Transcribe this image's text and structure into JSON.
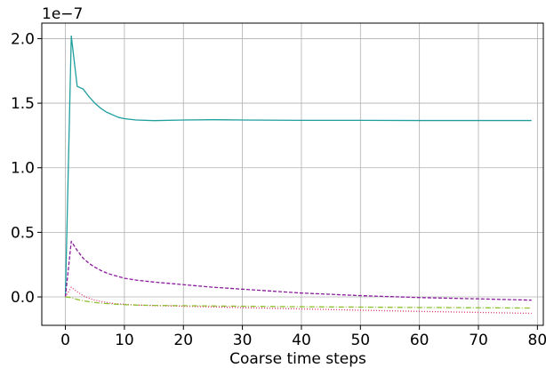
{
  "chart_data": {
    "type": "line",
    "title": "",
    "xlabel": "Coarse time steps",
    "ylabel": "",
    "y_offset_label": "1e−7",
    "xlim": [
      -4,
      81
    ],
    "ylim": [
      -0.22,
      2.12
    ],
    "x_ticks": [
      0,
      10,
      20,
      30,
      40,
      50,
      60,
      70,
      80
    ],
    "y_ticks": [
      0.0,
      0.5,
      1.0,
      1.5,
      2.0
    ],
    "y_tick_labels": [
      "0.0",
      "0.5",
      "1.0",
      "1.5",
      "2.0"
    ],
    "grid": true,
    "legend": "none",
    "series": [
      {
        "color": "#1f9e9e",
        "style": "solid",
        "x": [
          0,
          1,
          2,
          3,
          4,
          5,
          6,
          7,
          8,
          9,
          10,
          12,
          15,
          20,
          25,
          30,
          40,
          50,
          60,
          70,
          79
        ],
        "y": [
          0.0,
          2.02,
          1.63,
          1.61,
          1.55,
          1.5,
          1.46,
          1.43,
          1.41,
          1.39,
          1.38,
          1.37,
          1.365,
          1.37,
          1.372,
          1.37,
          1.367,
          1.367,
          1.366,
          1.366,
          1.366
        ]
      },
      {
        "color": "#8b1a9e",
        "style": "dashed",
        "x": [
          0,
          1,
          2,
          3,
          4,
          5,
          6,
          7,
          8,
          10,
          12,
          15,
          20,
          25,
          30,
          40,
          50,
          60,
          70,
          79
        ],
        "y": [
          0.0,
          0.43,
          0.36,
          0.3,
          0.26,
          0.23,
          0.205,
          0.185,
          0.17,
          0.145,
          0.13,
          0.115,
          0.095,
          0.075,
          0.06,
          0.03,
          0.01,
          -0.005,
          -0.015,
          -0.025
        ]
      },
      {
        "color": "#e0336e",
        "style": "dotted",
        "x": [
          0,
          1,
          2,
          3,
          4,
          5,
          6,
          8,
          10,
          12,
          15,
          20,
          30,
          40,
          50,
          60,
          70,
          79
        ],
        "y": [
          0.0,
          0.075,
          0.04,
          0.01,
          -0.01,
          -0.025,
          -0.035,
          -0.05,
          -0.058,
          -0.063,
          -0.067,
          -0.072,
          -0.083,
          -0.093,
          -0.103,
          -0.112,
          -0.12,
          -0.127
        ]
      },
      {
        "color": "#8fbf2e",
        "style": "dashdot",
        "x": [
          0,
          1,
          2,
          3,
          4,
          5,
          6,
          8,
          10,
          12,
          15,
          20,
          30,
          40,
          50,
          60,
          70,
          79
        ],
        "y": [
          0.0,
          -0.005,
          -0.02,
          -0.03,
          -0.037,
          -0.043,
          -0.048,
          -0.055,
          -0.06,
          -0.063,
          -0.066,
          -0.068,
          -0.072,
          -0.076,
          -0.079,
          -0.082,
          -0.084,
          -0.086
        ]
      }
    ]
  }
}
